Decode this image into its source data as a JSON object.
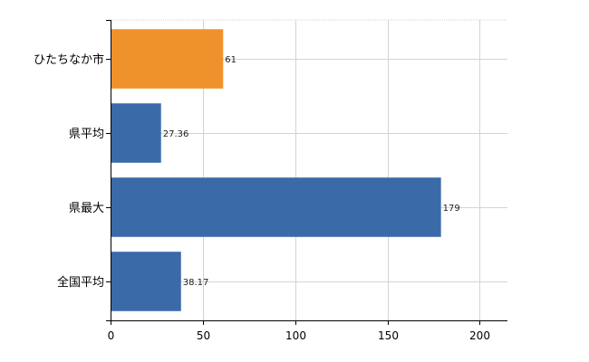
{
  "chart_data": {
    "type": "bar",
    "orientation": "horizontal",
    "categories": [
      "ひたちなか市",
      "県平均",
      "県最大",
      "全国平均"
    ],
    "values": [
      61,
      27.36,
      179,
      38.17
    ],
    "data_labels": [
      "61",
      "27.36",
      "179",
      "38.17"
    ],
    "bar_colors": [
      "#f0922b",
      "#3a6ba8",
      "#3a6ba8",
      "#3a6ba8"
    ],
    "xlim": [
      0,
      215
    ],
    "x_ticks": [
      0,
      50,
      100,
      150,
      200
    ],
    "x_tick_labels": [
      "0",
      "50",
      "100",
      "150",
      "200"
    ],
    "grid": true,
    "grid_color": "#d3d3d3",
    "axis_color": "#000000"
  }
}
